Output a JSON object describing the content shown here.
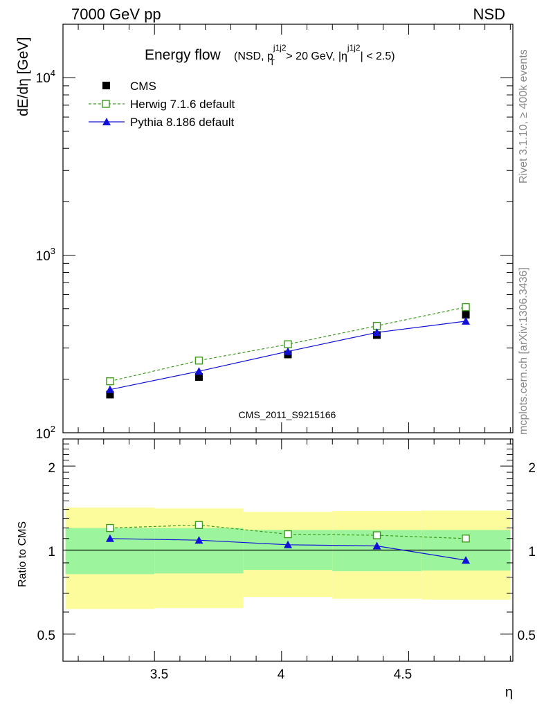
{
  "header": {
    "left": "7000 GeV pp",
    "right": "NSD"
  },
  "side_labels": {
    "rivet": "Rivet 3.1.10, ≥ 400k events",
    "mcplots": "mcplots.cern.ch [arXiv:1306.3436]"
  },
  "watermark": "CMS_2011_S9215166",
  "chart_data": [
    {
      "type": "scatter",
      "panel": "main",
      "title": "Energy flow",
      "title_suffix": {
        "a": "(NSD, p",
        "sup": "j1j2",
        "sub": "T",
        "b": " > 20 GeV, |η",
        "sup2": "j1j2",
        "c": "| < 2.5)"
      },
      "ylabel": "dE/dη [GeV]",
      "xlabel": "η",
      "xlim": [
        3.14,
        4.91
      ],
      "ylim": [
        100,
        20000
      ],
      "yscale": "log",
      "x_ticks": [
        "3.5",
        "4",
        "4.5"
      ],
      "y_ticks": [
        {
          "base": "10",
          "exp": "2"
        },
        {
          "base": "10",
          "exp": "3"
        },
        {
          "base": "10",
          "exp": "4"
        }
      ],
      "legend_position": "top-left",
      "series": [
        {
          "name": "CMS",
          "color": "#000000",
          "marker": "square-filled",
          "line": "none",
          "x": [
            3.325,
            3.675,
            4.025,
            4.375,
            4.725
          ],
          "y": [
            164,
            206,
            276,
            355,
            462
          ]
        },
        {
          "name": "Herwig 7.1.6 default",
          "color": "#3a9a1a",
          "marker": "square-open",
          "line": "dashed",
          "x": [
            3.325,
            3.675,
            4.025,
            4.375,
            4.725
          ],
          "y": [
            195,
            255,
            315,
            400,
            510
          ]
        },
        {
          "name": "Pythia 8.186 default",
          "color": "#1010d8",
          "marker": "triangle-filled",
          "line": "solid",
          "x": [
            3.325,
            3.675,
            4.025,
            4.375,
            4.725
          ],
          "y": [
            175,
            222,
            287,
            367,
            425
          ]
        }
      ]
    },
    {
      "type": "line",
      "panel": "ratio",
      "ylabel": "Ratio to CMS",
      "xlabel": "η",
      "xlim": [
        3.14,
        4.91
      ],
      "ylim": [
        0.4,
        2.5
      ],
      "yscale": "log",
      "x_ticks": [
        "3.5",
        "4",
        "4.5"
      ],
      "y_ticks": [
        "0.5",
        "1",
        "2"
      ],
      "reference": 1,
      "bands": [
        {
          "x0": 3.15,
          "x1": 3.5,
          "inner": [
            0.82,
            1.2
          ],
          "outer": [
            0.615,
            1.42
          ]
        },
        {
          "x0": 3.5,
          "x1": 3.85,
          "inner": [
            0.825,
            1.2
          ],
          "outer": [
            0.62,
            1.41
          ]
        },
        {
          "x0": 3.85,
          "x1": 4.2,
          "inner": [
            0.85,
            1.18
          ],
          "outer": [
            0.68,
            1.37
          ]
        },
        {
          "x0": 4.2,
          "x1": 4.55,
          "inner": [
            0.84,
            1.18
          ],
          "outer": [
            0.67,
            1.38
          ]
        },
        {
          "x0": 4.55,
          "x1": 4.9,
          "inner": [
            0.845,
            1.18
          ],
          "outer": [
            0.665,
            1.385
          ]
        }
      ],
      "series": [
        {
          "name": "Herwig 7.1.6 default",
          "color": "#3a9a1a",
          "marker": "square-open",
          "line": "dashed",
          "x": [
            3.325,
            3.675,
            4.025,
            4.375,
            4.725
          ],
          "y": [
            1.2,
            1.23,
            1.14,
            1.13,
            1.1
          ]
        },
        {
          "name": "Pythia 8.186 default",
          "color": "#1010d8",
          "marker": "triangle-filled",
          "line": "solid",
          "x": [
            3.325,
            3.675,
            4.025,
            4.375,
            4.725
          ],
          "y": [
            1.1,
            1.085,
            1.045,
            1.035,
            0.92
          ]
        }
      ]
    }
  ],
  "colors": {
    "band_inner": "#9cf59c",
    "band_outer": "#fcfc9c",
    "watermark": "#999999",
    "side_labels": "#888888"
  }
}
